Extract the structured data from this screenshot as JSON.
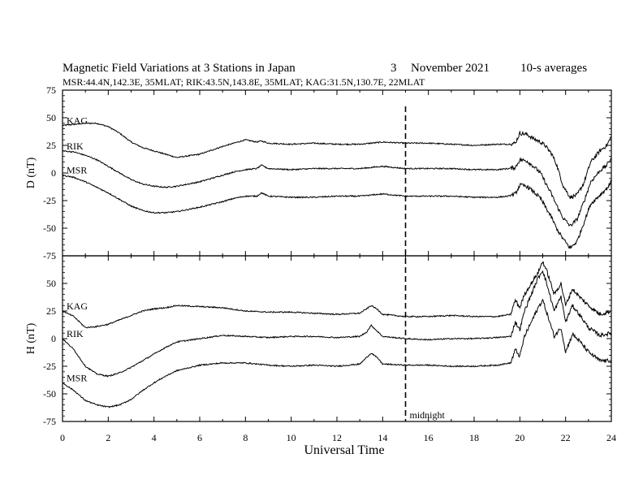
{
  "chart_data": [
    {
      "type": "line",
      "panel": "D",
      "title": "Magnetic Field Variations at 3 Stations in Japan",
      "date_day": "3",
      "date_month": "November",
      "date_year": "2021",
      "averaging": "10-s averages",
      "subtitle": "MSR:44.4N,142.3E, 35MLAT;  RIK:43.5N,143.8E, 35MLAT;  KAG:31.5N,130.7E, 22MLAT",
      "ylabel": "D (nT)",
      "xlabel": "",
      "xlim": [
        0,
        24
      ],
      "ylim": [
        -75,
        75
      ],
      "yticks": [
        75,
        50,
        25,
        0,
        -25,
        -50,
        -75
      ],
      "xticks": [],
      "series": [
        {
          "name": "KAG",
          "x": [
            0,
            0.5,
            1,
            1.5,
            2,
            2.5,
            3,
            3.5,
            4,
            4.5,
            5,
            6,
            7,
            7.5,
            8,
            8.5,
            8.7,
            9,
            10,
            11,
            12,
            13,
            13.5,
            14,
            15,
            16,
            17,
            18,
            19,
            19.5,
            19.8,
            20,
            20.3,
            20.6,
            20.9,
            21.1,
            21.4,
            21.6,
            21.9,
            22.2,
            22.5,
            22.8,
            23.1,
            23.5,
            23.8,
            24
          ],
          "y": [
            43,
            44,
            45,
            45,
            42,
            36,
            28,
            23,
            20,
            17,
            14,
            17,
            24,
            27,
            30,
            28,
            29,
            27,
            26,
            27,
            26,
            26,
            27,
            28,
            27,
            27,
            26,
            25,
            26,
            26,
            27,
            36,
            35,
            31,
            28,
            25,
            17,
            8,
            -12,
            -22,
            -20,
            -9,
            10,
            20,
            25,
            33
          ]
        },
        {
          "name": "RIK",
          "x": [
            0,
            0.5,
            1,
            1.5,
            2,
            2.5,
            3,
            3.5,
            4,
            4.5,
            5,
            6,
            7,
            7.5,
            8,
            8.5,
            8.7,
            9,
            10,
            11,
            12,
            13,
            13.5,
            14,
            15,
            16,
            17,
            18,
            19,
            19.5,
            19.8,
            20,
            20.3,
            20.6,
            20.9,
            21.1,
            21.4,
            21.6,
            21.9,
            22.2,
            22.5,
            22.8,
            23.1,
            23.5,
            23.8,
            24
          ],
          "y": [
            20,
            19,
            16,
            12,
            6,
            0,
            -6,
            -10,
            -12,
            -13,
            -12,
            -8,
            -2,
            1,
            3,
            4,
            7,
            4,
            3,
            4,
            4,
            4,
            5,
            6,
            4,
            4,
            4,
            3,
            3,
            4,
            5,
            12,
            11,
            6,
            0,
            -8,
            -20,
            -29,
            -41,
            -48,
            -42,
            -26,
            -8,
            2,
            7,
            14
          ]
        },
        {
          "name": "MSR",
          "x": [
            0,
            0.5,
            1,
            1.5,
            2,
            2.5,
            3,
            3.5,
            4,
            4.5,
            5,
            6,
            7,
            7.5,
            8,
            8.5,
            8.7,
            9,
            10,
            11,
            12,
            13,
            13.5,
            14,
            15,
            16,
            17,
            18,
            19,
            19.5,
            19.8,
            20,
            20.3,
            20.6,
            20.9,
            21.1,
            21.4,
            21.6,
            21.9,
            22.2,
            22.5,
            22.8,
            23.1,
            23.5,
            23.8,
            24
          ],
          "y": [
            -2,
            -4,
            -8,
            -13,
            -18,
            -24,
            -30,
            -34,
            -36,
            -36,
            -35,
            -31,
            -26,
            -23,
            -21,
            -21,
            -18,
            -21,
            -22,
            -22,
            -21,
            -21,
            -20,
            -19,
            -21,
            -21,
            -21,
            -22,
            -22,
            -21,
            -19,
            -11,
            -12,
            -17,
            -23,
            -30,
            -41,
            -50,
            -60,
            -68,
            -62,
            -45,
            -28,
            -20,
            -14,
            -8
          ]
        }
      ]
    },
    {
      "type": "line",
      "panel": "H",
      "ylabel": "H (nT)",
      "xlabel": "Universal Time",
      "xlim": [
        0,
        24
      ],
      "ylim": [
        -75,
        75
      ],
      "yticks": [
        50,
        25,
        0,
        -25,
        -50,
        -75
      ],
      "xticks": [
        0,
        2,
        4,
        6,
        8,
        10,
        12,
        14,
        16,
        18,
        20,
        22,
        24
      ],
      "annotation": "midnight",
      "midnight_ut": 15,
      "series": [
        {
          "name": "KAG",
          "x": [
            0,
            0.5,
            1,
            1.5,
            2,
            2.5,
            3,
            3.5,
            4,
            4.5,
            5,
            6,
            7,
            8,
            9,
            10,
            11,
            12,
            13,
            13.3,
            13.5,
            13.8,
            14,
            15,
            16,
            17,
            18,
            19,
            19.6,
            19.8,
            20,
            20.2,
            20.5,
            20.8,
            21,
            21.2,
            21.5,
            21.8,
            22,
            22.3,
            22.6,
            23,
            23.5,
            24
          ],
          "y": [
            25,
            20,
            10,
            11,
            13,
            17,
            21,
            25,
            27,
            28,
            30,
            29,
            28,
            25,
            24,
            24,
            23,
            22,
            23,
            27,
            30,
            26,
            22,
            20,
            20,
            21,
            20,
            20,
            22,
            35,
            28,
            40,
            50,
            60,
            70,
            60,
            40,
            50,
            30,
            45,
            38,
            30,
            22,
            25
          ]
        },
        {
          "name": "RIK",
          "x": [
            0,
            0.5,
            1,
            1.5,
            2,
            2.5,
            3,
            3.5,
            4,
            4.5,
            5,
            6,
            7,
            8,
            9,
            10,
            11,
            12,
            13,
            13.3,
            13.5,
            13.8,
            14,
            15,
            16,
            17,
            18,
            19,
            19.6,
            19.8,
            20,
            20.2,
            20.5,
            20.8,
            21,
            21.2,
            21.5,
            21.8,
            22,
            22.3,
            22.6,
            23,
            23.5,
            24
          ],
          "y": [
            0,
            -10,
            -25,
            -32,
            -34,
            -31,
            -26,
            -20,
            -14,
            -8,
            -3,
            0,
            3,
            2,
            1,
            2,
            2,
            1,
            2,
            6,
            12,
            6,
            2,
            0,
            -1,
            0,
            0,
            1,
            2,
            15,
            8,
            25,
            40,
            55,
            62,
            48,
            25,
            38,
            15,
            30,
            22,
            10,
            3,
            5
          ]
        },
        {
          "name": "MSR",
          "x": [
            0,
            0.5,
            1,
            1.5,
            2,
            2.5,
            3,
            3.5,
            4,
            4.5,
            5,
            6,
            7,
            8,
            9,
            10,
            11,
            12,
            13,
            13.3,
            13.5,
            13.8,
            14,
            15,
            16,
            17,
            18,
            19,
            19.6,
            19.8,
            20,
            20.2,
            20.5,
            20.8,
            21,
            21.2,
            21.5,
            21.8,
            22,
            22.3,
            22.6,
            23,
            23.5,
            24
          ],
          "y": [
            -40,
            -47,
            -56,
            -60,
            -62,
            -60,
            -55,
            -47,
            -40,
            -34,
            -29,
            -24,
            -22,
            -22,
            -24,
            -25,
            -24,
            -25,
            -23,
            -17,
            -13,
            -18,
            -23,
            -24,
            -24,
            -25,
            -25,
            -24,
            -22,
            -10,
            -16,
            2,
            15,
            28,
            35,
            22,
            2,
            10,
            -12,
            4,
            -2,
            -12,
            -20,
            -20
          ]
        }
      ]
    }
  ]
}
